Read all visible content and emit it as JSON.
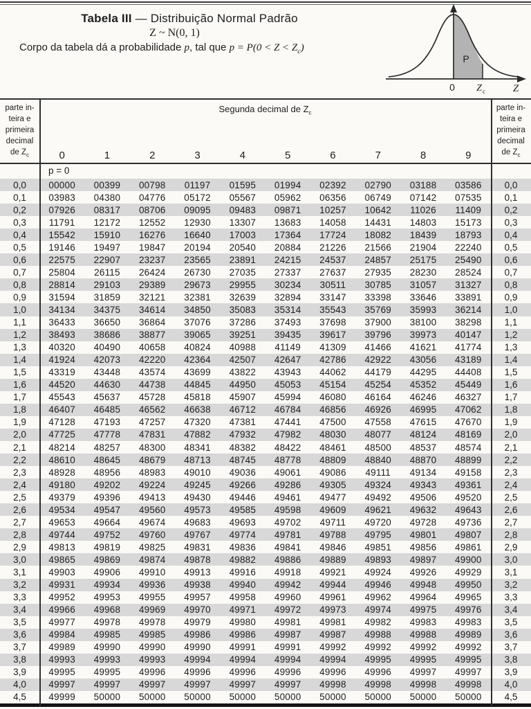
{
  "header": {
    "title_bold": "Tabela III",
    "title_rest": " — Distribuição Normal Padrão",
    "notation": "Z ~ N(0, 1)",
    "desc_pre": "Corpo da tabela dá a probabilidade ",
    "desc_p": "p",
    "desc_mid": ", tal que ",
    "formula_p": "p",
    "formula_body": " = P(0 < Z < Z",
    "formula_sub": "c",
    "formula_close": ")"
  },
  "diagram": {
    "p_label": "P",
    "zero_label": "0",
    "zc_label": "Z",
    "zc_sub": "c",
    "z_label": "Z"
  },
  "table": {
    "corner": {
      "l1": "parte in-",
      "l2": "teira e",
      "l3": "primeira",
      "l4": "decimal",
      "l5a": "de Z",
      "l5b": "c"
    },
    "second_decimal_label": "Segunda decimal de Z",
    "second_decimal_sub": "c",
    "col_headers": [
      "0",
      "1",
      "2",
      "3",
      "4",
      "5",
      "6",
      "7",
      "8",
      "9"
    ],
    "p_row_label": "p = 0",
    "rows": [
      {
        "label": "0,0",
        "values": [
          "00000",
          "00399",
          "00798",
          "01197",
          "01595",
          "01994",
          "02392",
          "02790",
          "03188",
          "03586"
        ]
      },
      {
        "label": "0,1",
        "values": [
          "03983",
          "04380",
          "04776",
          "05172",
          "05567",
          "05962",
          "06356",
          "06749",
          "07142",
          "07535"
        ]
      },
      {
        "label": "0,2",
        "values": [
          "07926",
          "08317",
          "08706",
          "09095",
          "09483",
          "09871",
          "10257",
          "10642",
          "11026",
          "11409"
        ]
      },
      {
        "label": "0,3",
        "values": [
          "11791",
          "12172",
          "12552",
          "12930",
          "13307",
          "13683",
          "14058",
          "14431",
          "14803",
          "15173"
        ]
      },
      {
        "label": "0,4",
        "values": [
          "15542",
          "15910",
          "16276",
          "16640",
          "17003",
          "17364",
          "17724",
          "18082",
          "18439",
          "18793"
        ]
      },
      {
        "label": "0,5",
        "values": [
          "19146",
          "19497",
          "19847",
          "20194",
          "20540",
          "20884",
          "21226",
          "21566",
          "21904",
          "22240"
        ]
      },
      {
        "label": "0,6",
        "values": [
          "22575",
          "22907",
          "23237",
          "23565",
          "23891",
          "24215",
          "24537",
          "24857",
          "25175",
          "25490"
        ]
      },
      {
        "label": "0,7",
        "values": [
          "25804",
          "26115",
          "26424",
          "26730",
          "27035",
          "27337",
          "27637",
          "27935",
          "28230",
          "28524"
        ]
      },
      {
        "label": "0,8",
        "values": [
          "28814",
          "29103",
          "29389",
          "29673",
          "29955",
          "30234",
          "30511",
          "30785",
          "31057",
          "31327"
        ]
      },
      {
        "label": "0,9",
        "values": [
          "31594",
          "31859",
          "32121",
          "32381",
          "32639",
          "32894",
          "33147",
          "33398",
          "33646",
          "33891"
        ]
      },
      {
        "label": "1,0",
        "values": [
          "34134",
          "34375",
          "34614",
          "34850",
          "35083",
          "35314",
          "35543",
          "35769",
          "35993",
          "36214"
        ]
      },
      {
        "label": "1,1",
        "values": [
          "36433",
          "36650",
          "36864",
          "37076",
          "37286",
          "37493",
          "37698",
          "37900",
          "38100",
          "38298"
        ]
      },
      {
        "label": "1,2",
        "values": [
          "38493",
          "38686",
          "38877",
          "39065",
          "39251",
          "39435",
          "39617",
          "39796",
          "39973",
          "40147"
        ]
      },
      {
        "label": "1,3",
        "values": [
          "40320",
          "40490",
          "40658",
          "40824",
          "40988",
          "41149",
          "41309",
          "41466",
          "41621",
          "41774"
        ]
      },
      {
        "label": "1,4",
        "values": [
          "41924",
          "42073",
          "42220",
          "42364",
          "42507",
          "42647",
          "42786",
          "42922",
          "43056",
          "43189"
        ]
      },
      {
        "label": "1,5",
        "values": [
          "43319",
          "43448",
          "43574",
          "43699",
          "43822",
          "43943",
          "44062",
          "44179",
          "44295",
          "44408"
        ]
      },
      {
        "label": "1,6",
        "values": [
          "44520",
          "44630",
          "44738",
          "44845",
          "44950",
          "45053",
          "45154",
          "45254",
          "45352",
          "45449"
        ]
      },
      {
        "label": "1,7",
        "values": [
          "45543",
          "45637",
          "45728",
          "45818",
          "45907",
          "45994",
          "46080",
          "46164",
          "46246",
          "46327"
        ]
      },
      {
        "label": "1,8",
        "values": [
          "46407",
          "46485",
          "46562",
          "46638",
          "46712",
          "46784",
          "46856",
          "46926",
          "46995",
          "47062"
        ]
      },
      {
        "label": "1,9",
        "values": [
          "47128",
          "47193",
          "47257",
          "47320",
          "47381",
          "47441",
          "47500",
          "47558",
          "47615",
          "47670"
        ]
      },
      {
        "label": "2,0",
        "values": [
          "47725",
          "47778",
          "47831",
          "47882",
          "47932",
          "47982",
          "48030",
          "48077",
          "48124",
          "48169"
        ]
      },
      {
        "label": "2,1",
        "values": [
          "48214",
          "48257",
          "48300",
          "48341",
          "48382",
          "48422",
          "48461",
          "48500",
          "48537",
          "48574"
        ]
      },
      {
        "label": "2,2",
        "values": [
          "48610",
          "48645",
          "48679",
          "48713",
          "48745",
          "48778",
          "48809",
          "48840",
          "48870",
          "48899"
        ]
      },
      {
        "label": "2,3",
        "values": [
          "48928",
          "48956",
          "48983",
          "49010",
          "49036",
          "49061",
          "49086",
          "49111",
          "49134",
          "49158"
        ]
      },
      {
        "label": "2,4",
        "values": [
          "49180",
          "49202",
          "49224",
          "49245",
          "49266",
          "49286",
          "49305",
          "49324",
          "49343",
          "49361"
        ]
      },
      {
        "label": "2,5",
        "values": [
          "49379",
          "49396",
          "49413",
          "49430",
          "49446",
          "49461",
          "49477",
          "49492",
          "49506",
          "49520"
        ]
      },
      {
        "label": "2,6",
        "values": [
          "49534",
          "49547",
          "49560",
          "49573",
          "49585",
          "49598",
          "49609",
          "49621",
          "49632",
          "49643"
        ]
      },
      {
        "label": "2,7",
        "values": [
          "49653",
          "49664",
          "49674",
          "49683",
          "49693",
          "49702",
          "49711",
          "49720",
          "49728",
          "49736"
        ]
      },
      {
        "label": "2,8",
        "values": [
          "49744",
          "49752",
          "49760",
          "49767",
          "49774",
          "49781",
          "49788",
          "49795",
          "49801",
          "49807"
        ]
      },
      {
        "label": "2,9",
        "values": [
          "49813",
          "49819",
          "49825",
          "49831",
          "49836",
          "49841",
          "49846",
          "49851",
          "49856",
          "49861"
        ]
      },
      {
        "label": "3,0",
        "values": [
          "49865",
          "49869",
          "49874",
          "49878",
          "49882",
          "49886",
          "49889",
          "49893",
          "49897",
          "49900"
        ]
      },
      {
        "label": "3,1",
        "values": [
          "49903",
          "49906",
          "49910",
          "49913",
          "49916",
          "49918",
          "49921",
          "49924",
          "49926",
          "49929"
        ]
      },
      {
        "label": "3,2",
        "values": [
          "49931",
          "49934",
          "49936",
          "49938",
          "49940",
          "49942",
          "49944",
          "49946",
          "49948",
          "49950"
        ]
      },
      {
        "label": "3,3",
        "values": [
          "49952",
          "49953",
          "49955",
          "49957",
          "49958",
          "49960",
          "49961",
          "49962",
          "49964",
          "49965"
        ]
      },
      {
        "label": "3,4",
        "values": [
          "49966",
          "49968",
          "49969",
          "49970",
          "49971",
          "49972",
          "49973",
          "49974",
          "49975",
          "49976"
        ]
      },
      {
        "label": "3,5",
        "values": [
          "49977",
          "49978",
          "49978",
          "49979",
          "49980",
          "49981",
          "49981",
          "49982",
          "49983",
          "49983"
        ]
      },
      {
        "label": "3,6",
        "values": [
          "49984",
          "49985",
          "49985",
          "49986",
          "49986",
          "49987",
          "49987",
          "49988",
          "49988",
          "49989"
        ]
      },
      {
        "label": "3,7",
        "values": [
          "49989",
          "49990",
          "49990",
          "49990",
          "49991",
          "49991",
          "49992",
          "49992",
          "49992",
          "49992"
        ]
      },
      {
        "label": "3,8",
        "values": [
          "49993",
          "49993",
          "49993",
          "49994",
          "49994",
          "49994",
          "49994",
          "49995",
          "49995",
          "49995"
        ]
      },
      {
        "label": "3,9",
        "values": [
          "49995",
          "49995",
          "49996",
          "49996",
          "49996",
          "49996",
          "49996",
          "49996",
          "49997",
          "49997"
        ]
      },
      {
        "label": "4,0",
        "values": [
          "49997",
          "49997",
          "49997",
          "49997",
          "49997",
          "49997",
          "49998",
          "49998",
          "49998",
          "49998"
        ]
      },
      {
        "label": "4,5",
        "values": [
          "49999",
          "50000",
          "50000",
          "50000",
          "50000",
          "50000",
          "50000",
          "50000",
          "50000",
          "50000"
        ]
      }
    ]
  },
  "colors": {
    "stripe": "#d8d8d8",
    "curve_area_fill": "#b3b3b3",
    "line": "#2e2e2e",
    "text": "#1d1d1d",
    "page_bg": "#fbfaf7"
  }
}
